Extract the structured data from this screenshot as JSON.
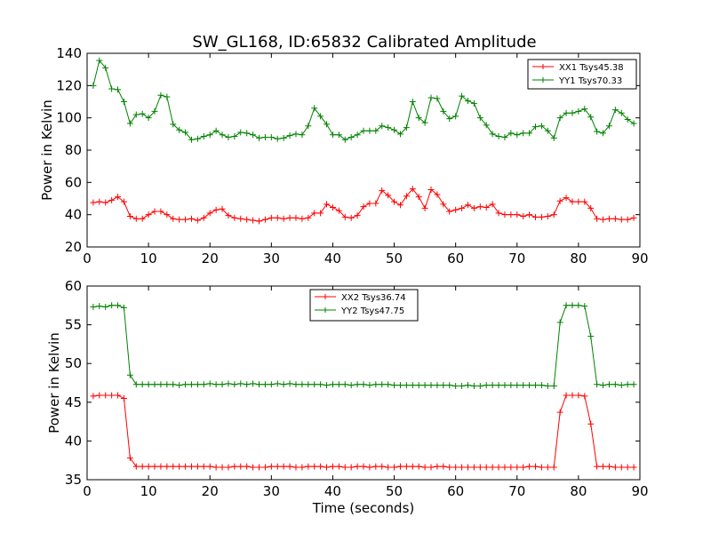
{
  "figure": {
    "title": "SW_GL168, ID:65832 Calibrated Amplitude"
  },
  "chart_data": [
    {
      "type": "line",
      "title": "SW_GL168, ID:65832 Calibrated Amplitude",
      "xlabel": "",
      "ylabel": "Power in Kelvin",
      "xlim": [
        0,
        90
      ],
      "ylim": [
        20,
        140
      ],
      "xticks": [
        0,
        10,
        20,
        30,
        40,
        50,
        60,
        70,
        80,
        90
      ],
      "yticks": [
        20,
        40,
        60,
        80,
        100,
        120,
        140
      ],
      "grid": false,
      "legend_position": "top-right",
      "x": [
        1,
        2,
        3,
        4,
        5,
        6,
        7,
        8,
        9,
        10,
        11,
        12,
        13,
        14,
        15,
        16,
        17,
        18,
        19,
        20,
        21,
        22,
        23,
        24,
        25,
        26,
        27,
        28,
        29,
        30,
        31,
        32,
        33,
        34,
        35,
        36,
        37,
        38,
        39,
        40,
        41,
        42,
        43,
        44,
        45,
        46,
        47,
        48,
        49,
        50,
        51,
        52,
        53,
        54,
        55,
        56,
        57,
        58,
        59,
        60,
        61,
        62,
        63,
        64,
        65,
        66,
        67,
        68,
        69,
        70,
        71,
        72,
        73,
        74,
        75,
        76,
        77,
        78,
        79,
        80,
        81,
        82,
        83,
        84,
        85,
        86,
        87,
        88,
        89
      ],
      "series": [
        {
          "name": "XX1 Tsys45.38",
          "color": "#ff0000",
          "values": [
            47.5,
            48,
            47.5,
            49,
            51,
            48,
            39,
            37.5,
            37.5,
            40,
            42,
            42,
            40,
            37.5,
            37,
            37,
            37.5,
            36.5,
            38,
            41,
            43,
            43.5,
            39.5,
            38,
            37.5,
            37,
            36.5,
            36,
            37,
            38,
            38,
            37.5,
            38,
            38,
            37.5,
            38,
            41,
            41,
            46.5,
            44.5,
            42.5,
            38.5,
            38,
            39.5,
            45,
            47,
            47,
            55,
            52,
            48,
            46,
            51.5,
            56,
            51,
            44,
            55.5,
            52.5,
            46.5,
            42,
            43,
            44,
            46,
            44,
            45,
            44.5,
            46.5,
            41,
            40,
            40,
            40,
            39,
            40,
            38.5,
            38.5,
            39,
            40,
            48.5,
            50.5,
            48,
            48,
            48,
            44,
            37.5,
            37,
            37.5,
            37.5,
            37,
            37,
            38
          ]
        },
        {
          "name": "YY1 Tsys70.33",
          "color": "#008000",
          "values": [
            120,
            135.5,
            131,
            118,
            117.5,
            110,
            96.5,
            102,
            102.5,
            100,
            104,
            114,
            113,
            96,
            92.5,
            91,
            86.5,
            87,
            88.5,
            89.5,
            92,
            89.5,
            88,
            88.5,
            91,
            90.5,
            89.5,
            87.5,
            88,
            88,
            87,
            87.5,
            89,
            90,
            89.5,
            95,
            106,
            101,
            96,
            89.5,
            89.5,
            86.5,
            88,
            89.5,
            92,
            92,
            92,
            95,
            94,
            92.5,
            90,
            94,
            110,
            100,
            97,
            112.5,
            112,
            104,
            99.5,
            101,
            113.5,
            110.5,
            109,
            100,
            95.5,
            90,
            88.5,
            88,
            90.5,
            89.5,
            90.5,
            90.5,
            94.5,
            95,
            92,
            87.5,
            100,
            103,
            103,
            104,
            105.5,
            100.5,
            91.5,
            90.5,
            95,
            105,
            103,
            99,
            96.5
          ]
        }
      ]
    },
    {
      "type": "line",
      "title": "",
      "xlabel": "Time (seconds)",
      "ylabel": "Power in Kelvin",
      "xlim": [
        0,
        90
      ],
      "ylim": [
        35,
        60
      ],
      "xticks": [
        0,
        10,
        20,
        30,
        40,
        50,
        60,
        70,
        80,
        90
      ],
      "yticks": [
        35,
        40,
        45,
        50,
        55,
        60
      ],
      "grid": false,
      "legend_position": "top-center",
      "x": [
        1,
        2,
        3,
        4,
        5,
        6,
        7,
        8,
        9,
        10,
        11,
        12,
        13,
        14,
        15,
        16,
        17,
        18,
        19,
        20,
        21,
        22,
        23,
        24,
        25,
        26,
        27,
        28,
        29,
        30,
        31,
        32,
        33,
        34,
        35,
        36,
        37,
        38,
        39,
        40,
        41,
        42,
        43,
        44,
        45,
        46,
        47,
        48,
        49,
        50,
        51,
        52,
        53,
        54,
        55,
        56,
        57,
        58,
        59,
        60,
        61,
        62,
        63,
        64,
        65,
        66,
        67,
        68,
        69,
        70,
        71,
        72,
        73,
        74,
        75,
        76,
        77,
        78,
        79,
        80,
        81,
        82,
        83,
        84,
        85,
        86,
        87,
        88,
        89
      ],
      "series": [
        {
          "name": "XX2 Tsys36.74",
          "color": "#ff0000",
          "values": [
            45.8,
            45.9,
            45.9,
            45.9,
            45.9,
            45.5,
            37.8,
            36.7,
            36.7,
            36.7,
            36.7,
            36.7,
            36.7,
            36.7,
            36.7,
            36.7,
            36.7,
            36.7,
            36.7,
            36.7,
            36.6,
            36.6,
            36.6,
            36.7,
            36.7,
            36.7,
            36.6,
            36.6,
            36.6,
            36.7,
            36.7,
            36.7,
            36.7,
            36.6,
            36.6,
            36.7,
            36.7,
            36.7,
            36.6,
            36.7,
            36.7,
            36.6,
            36.6,
            36.7,
            36.7,
            36.6,
            36.7,
            36.7,
            36.6,
            36.6,
            36.7,
            36.7,
            36.7,
            36.7,
            36.6,
            36.6,
            36.7,
            36.7,
            36.6,
            36.6,
            36.6,
            36.6,
            36.6,
            36.6,
            36.6,
            36.6,
            36.6,
            36.6,
            36.6,
            36.6,
            36.6,
            36.7,
            36.7,
            36.6,
            36.6,
            36.6,
            43.7,
            45.9,
            45.9,
            45.9,
            45.8,
            42.2,
            36.7,
            36.7,
            36.7,
            36.6,
            36.6,
            36.6,
            36.6
          ]
        },
        {
          "name": "YY2 Tsys47.75",
          "color": "#008000",
          "values": [
            57.3,
            57.4,
            57.3,
            57.5,
            57.5,
            57.2,
            48.5,
            47.3,
            47.3,
            47.3,
            47.3,
            47.3,
            47.3,
            47.3,
            47.2,
            47.3,
            47.3,
            47.3,
            47.3,
            47.4,
            47.3,
            47.3,
            47.4,
            47.3,
            47.4,
            47.3,
            47.4,
            47.3,
            47.3,
            47.3,
            47.4,
            47.3,
            47.4,
            47.3,
            47.3,
            47.3,
            47.3,
            47.3,
            47.2,
            47.3,
            47.3,
            47.3,
            47.2,
            47.3,
            47.3,
            47.2,
            47.3,
            47.3,
            47.3,
            47.2,
            47.2,
            47.2,
            47.2,
            47.2,
            47.2,
            47.2,
            47.2,
            47.2,
            47.2,
            47.1,
            47.1,
            47.2,
            47.1,
            47.1,
            47.2,
            47.2,
            47.2,
            47.2,
            47.2,
            47.2,
            47.2,
            47.2,
            47.2,
            47.2,
            47.1,
            47.1,
            55.3,
            57.5,
            57.5,
            57.5,
            57.4,
            53.5,
            47.3,
            47.2,
            47.3,
            47.3,
            47.2,
            47.3,
            47.3
          ]
        }
      ]
    }
  ]
}
